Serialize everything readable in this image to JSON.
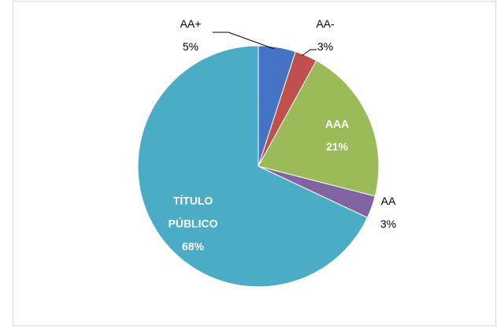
{
  "chart_data": {
    "type": "pie",
    "categories": [
      "AA+",
      "AA-",
      "AAA",
      "AA",
      "TÍTULO PÚBLICO"
    ],
    "values": [
      5,
      3,
      21,
      3,
      68
    ],
    "value_labels": [
      "5%",
      "3%",
      "21%",
      "3%",
      "68%"
    ],
    "colors": [
      "#4472c4",
      "#c0504d",
      "#9bbb59",
      "#8064a2",
      "#4bacc6"
    ]
  }
}
